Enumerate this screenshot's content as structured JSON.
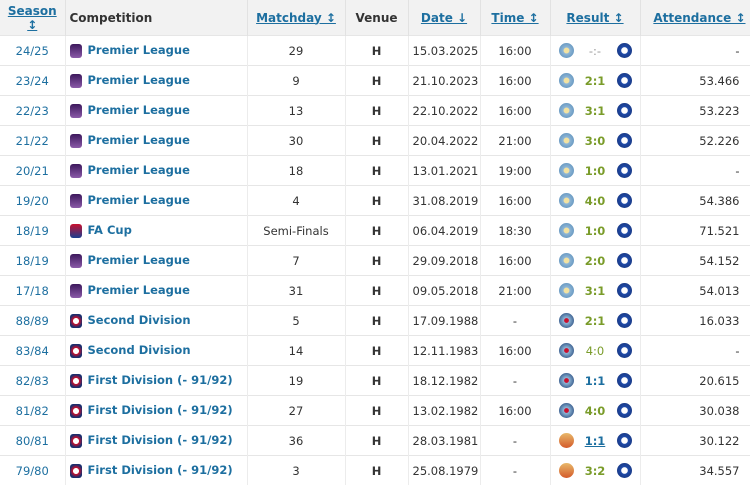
{
  "headers": {
    "season": "Season ↕",
    "competition": "Competition",
    "matchday": "Matchday ↕",
    "venue": "Venue",
    "date": "Date ↓",
    "time": "Time ↕",
    "result": "Result ↕",
    "attendance": "Attendance ↕"
  },
  "colors": {
    "link": "#1d6fa0",
    "win": "#7a9c2a",
    "draw": "#1d6fa0",
    "header_bg": "#f2f2f2"
  },
  "rows": [
    {
      "season": "24/25",
      "competition": "Premier League",
      "icon": "premier-league-logo",
      "matchday": "29",
      "venue": "H",
      "date": "15.03.2025",
      "time": "16:00",
      "home_badge": "man-city-modern",
      "result": "-:-",
      "attendance": "-"
    },
    {
      "season": "23/24",
      "competition": "Premier League",
      "icon": "premier-league-logo",
      "matchday": "9",
      "venue": "H",
      "date": "21.10.2023",
      "time": "16:00",
      "home_badge": "man-city-modern",
      "result": "2:1",
      "attendance": "53.466"
    },
    {
      "season": "22/23",
      "competition": "Premier League",
      "icon": "premier-league-logo",
      "matchday": "13",
      "venue": "H",
      "date": "22.10.2022",
      "time": "16:00",
      "home_badge": "man-city-modern",
      "result": "3:1",
      "attendance": "53.223"
    },
    {
      "season": "21/22",
      "competition": "Premier League",
      "icon": "premier-league-logo",
      "matchday": "30",
      "venue": "H",
      "date": "20.04.2022",
      "time": "21:00",
      "home_badge": "man-city-modern",
      "result": "3:0",
      "attendance": "52.226"
    },
    {
      "season": "20/21",
      "competition": "Premier League",
      "icon": "premier-league-logo",
      "matchday": "18",
      "venue": "H",
      "date": "13.01.2021",
      "time": "19:00",
      "home_badge": "man-city-modern",
      "result": "1:0",
      "attendance": "-"
    },
    {
      "season": "19/20",
      "competition": "Premier League",
      "icon": "premier-league-logo",
      "matchday": "4",
      "venue": "H",
      "date": "31.08.2019",
      "time": "16:00",
      "home_badge": "man-city-modern",
      "result": "4:0",
      "attendance": "54.386"
    },
    {
      "season": "18/19",
      "competition": "FA Cup",
      "icon": "fa-cup-logo",
      "matchday": "Semi-Finals",
      "venue": "H",
      "date": "06.04.2019",
      "time": "18:30",
      "home_badge": "man-city-modern",
      "result": "1:0",
      "attendance": "71.521"
    },
    {
      "season": "18/19",
      "competition": "Premier League",
      "icon": "premier-league-logo",
      "matchday": "7",
      "venue": "H",
      "date": "29.09.2018",
      "time": "16:00",
      "home_badge": "man-city-modern",
      "result": "2:0",
      "attendance": "54.152"
    },
    {
      "season": "17/18",
      "competition": "Premier League",
      "icon": "premier-league-logo",
      "matchday": "31",
      "venue": "H",
      "date": "09.05.2018",
      "time": "21:00",
      "home_badge": "man-city-modern",
      "result": "3:1",
      "attendance": "54.013"
    },
    {
      "season": "88/89",
      "competition": "Second Division",
      "icon": "football-league-logo",
      "matchday": "5",
      "venue": "H",
      "date": "17.09.1988",
      "time": "-",
      "home_badge": "man-city-old",
      "result": "2:1",
      "attendance": "16.033"
    },
    {
      "season": "83/84",
      "competition": "Second Division",
      "icon": "football-league-logo",
      "matchday": "14",
      "venue": "H",
      "date": "12.11.1983",
      "time": "16:00",
      "home_badge": "man-city-old",
      "result": "4:0",
      "attendance": "-"
    },
    {
      "season": "82/83",
      "competition": "First Division (- 91/92)",
      "icon": "football-league-logo",
      "matchday": "19",
      "venue": "H",
      "date": "18.12.1982",
      "time": "-",
      "home_badge": "man-city-old",
      "result": "1:1",
      "attendance": "20.615"
    },
    {
      "season": "81/82",
      "competition": "First Division (- 91/92)",
      "icon": "football-league-logo",
      "matchday": "27",
      "venue": "H",
      "date": "13.02.1982",
      "time": "16:00",
      "home_badge": "man-city-old",
      "result": "4:0",
      "attendance": "30.038"
    },
    {
      "season": "80/81",
      "competition": "First Division (- 91/92)",
      "icon": "football-league-logo",
      "matchday": "36",
      "venue": "H",
      "date": "28.03.1981",
      "time": "-",
      "home_badge": "man-city-crest",
      "result": "1:1",
      "attendance": "30.122"
    },
    {
      "season": "79/80",
      "competition": "First Division (- 91/92)",
      "icon": "football-league-logo",
      "matchday": "3",
      "venue": "H",
      "date": "25.08.1979",
      "time": "-",
      "home_badge": "man-city-crest",
      "result": "3:2",
      "attendance": "34.557"
    }
  ]
}
